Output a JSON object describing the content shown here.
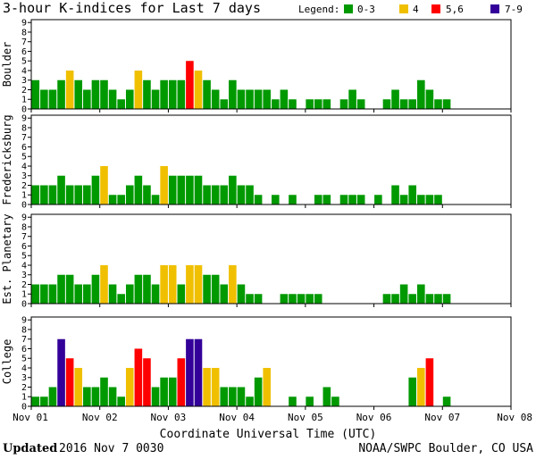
{
  "title": "3-hour K-indices for Last 7 days",
  "legend": {
    "label": "Legend:",
    "items": [
      {
        "label": "0-3",
        "color": "#009900"
      },
      {
        "label": "4",
        "color": "#f0c000"
      },
      {
        "label": "5,6",
        "color": "#ff0000"
      },
      {
        "label": "7-9",
        "color": "#330099"
      }
    ]
  },
  "xlabel": "Coordinate Universal Time (UTC)",
  "footer": {
    "updated_label": "Updated",
    "updated_value": "2016 Nov  7 0030",
    "credit": "NOAA/SWPC Boulder, CO USA"
  },
  "chart_data": {
    "type": "bar",
    "x_ticks": [
      "Nov 01",
      "Nov 02",
      "Nov 03",
      "Nov 04",
      "Nov 05",
      "Nov 06",
      "Nov 07",
      "Nov 08"
    ],
    "y_ticks": [
      "0",
      "1",
      "2",
      "3",
      "4",
      "5",
      "6",
      "7",
      "8",
      "9"
    ],
    "ylim": [
      0,
      9
    ],
    "bars_per_day": 8,
    "grid": false,
    "panels": [
      {
        "name": "Boulder",
        "values": [
          3,
          2,
          2,
          3,
          4,
          3,
          2,
          3,
          3,
          2,
          1,
          2,
          4,
          3,
          2,
          3,
          3,
          3,
          5,
          4,
          3,
          2,
          1,
          3,
          2,
          2,
          2,
          2,
          1,
          2,
          1,
          0,
          1,
          1,
          1,
          0,
          1,
          2,
          1,
          0,
          0,
          1,
          2,
          1,
          1,
          3,
          2,
          1,
          1,
          0,
          0,
          0,
          0,
          0,
          0,
          0
        ]
      },
      {
        "name": "Fredericksburg",
        "values": [
          2,
          2,
          2,
          3,
          2,
          2,
          2,
          3,
          4,
          1,
          1,
          2,
          3,
          2,
          1,
          4,
          3,
          3,
          3,
          3,
          2,
          2,
          2,
          3,
          2,
          2,
          1,
          0,
          1,
          0,
          1,
          0,
          0,
          1,
          1,
          0,
          1,
          1,
          1,
          0,
          1,
          0,
          2,
          1,
          2,
          1,
          1,
          1,
          0,
          0,
          0,
          0,
          0,
          0,
          0,
          0
        ]
      },
      {
        "name": "Est. Planetary",
        "values": [
          2,
          2,
          2,
          3,
          3,
          2,
          2,
          3,
          4,
          2,
          1,
          2,
          3,
          3,
          2,
          4,
          4,
          2,
          4,
          4,
          3,
          3,
          2,
          4,
          2,
          1,
          1,
          0,
          0,
          1,
          1,
          1,
          1,
          1,
          0,
          0,
          0,
          0,
          0,
          0,
          0,
          1,
          1,
          2,
          1,
          2,
          1,
          1,
          1,
          0,
          0,
          0,
          0,
          0,
          0,
          0
        ]
      },
      {
        "name": "College",
        "values": [
          1,
          1,
          2,
          7,
          5,
          4,
          2,
          2,
          3,
          2,
          1,
          4,
          6,
          5,
          2,
          3,
          3,
          5,
          7,
          7,
          4,
          4,
          2,
          2,
          2,
          1,
          3,
          4,
          0,
          0,
          1,
          0,
          1,
          0,
          2,
          1,
          0,
          0,
          0,
          0,
          0,
          0,
          0,
          0,
          3,
          4,
          5,
          0,
          1,
          0,
          0,
          0,
          0,
          0,
          0,
          0
        ]
      }
    ]
  }
}
